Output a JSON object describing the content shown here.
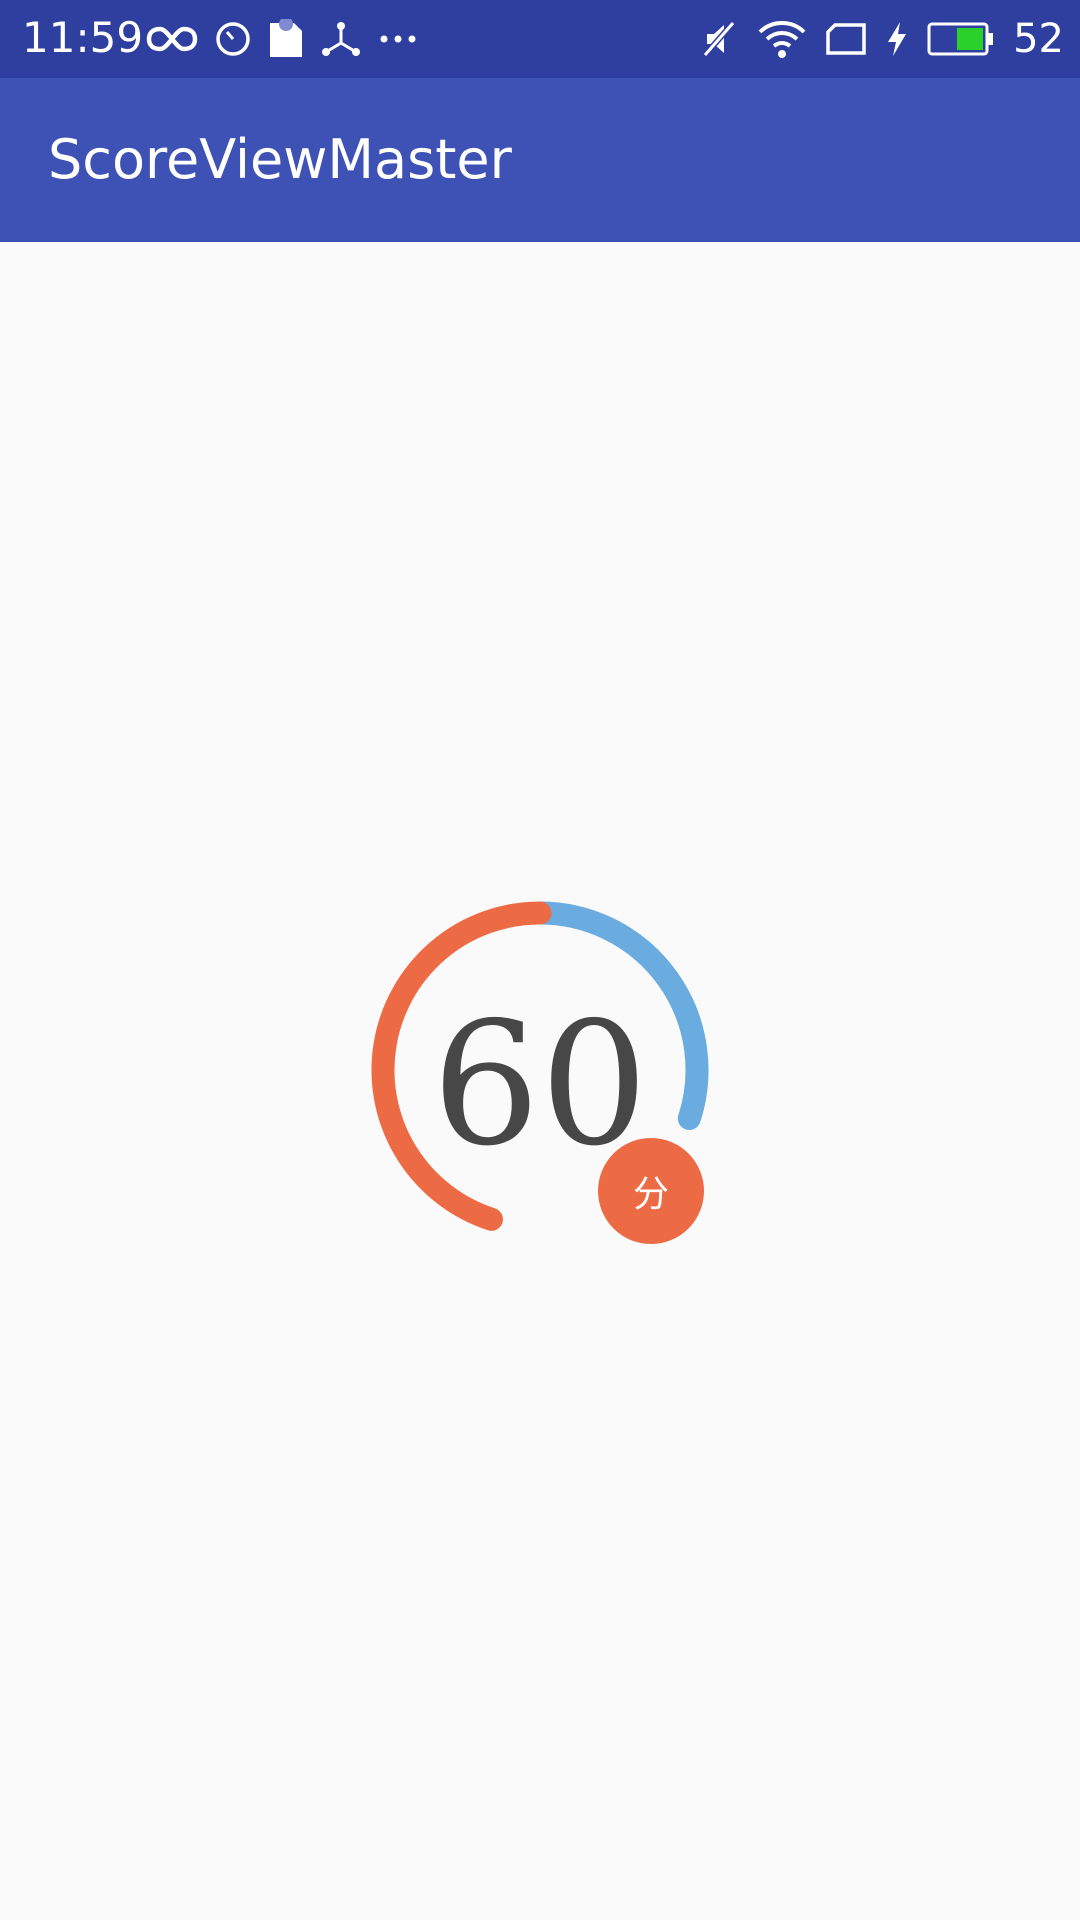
{
  "status_bar": {
    "time": "11:59",
    "battery_level": "52",
    "icons_left": [
      "infinity-icon",
      "timer-icon",
      "sd-card-icon",
      "share-icon",
      "more-dots-icon"
    ],
    "icons_right": [
      "mute-icon",
      "wifi-icon",
      "sim-card-icon",
      "charging-icon",
      "battery-icon"
    ],
    "background_color": "#2f3fa0"
  },
  "app_bar": {
    "title": "ScoreViewMaster",
    "background_color": "#3e51b5"
  },
  "score_view": {
    "score": "60",
    "unit": "分",
    "progress_fraction": 0.6,
    "progress_color": "#ec6b45",
    "track_color": "#6aace0",
    "text_color": "#474747"
  }
}
